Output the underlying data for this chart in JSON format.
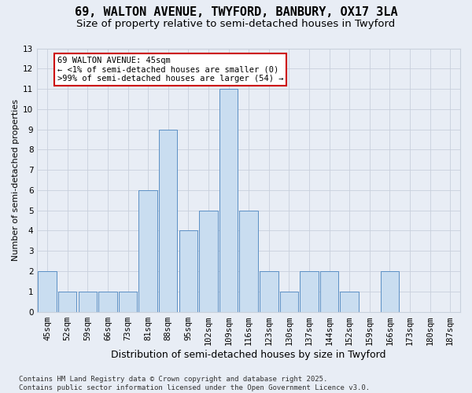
{
  "title1": "69, WALTON AVENUE, TWYFORD, BANBURY, OX17 3LA",
  "title2": "Size of property relative to semi-detached houses in Twyford",
  "xlabel": "Distribution of semi-detached houses by size in Twyford",
  "ylabel": "Number of semi-detached properties",
  "categories": [
    "45sqm",
    "52sqm",
    "59sqm",
    "66sqm",
    "73sqm",
    "81sqm",
    "88sqm",
    "95sqm",
    "102sqm",
    "109sqm",
    "116sqm",
    "123sqm",
    "130sqm",
    "137sqm",
    "144sqm",
    "152sqm",
    "159sqm",
    "166sqm",
    "173sqm",
    "180sqm",
    "187sqm"
  ],
  "values": [
    2,
    1,
    1,
    1,
    1,
    6,
    9,
    4,
    5,
    11,
    5,
    2,
    1,
    2,
    2,
    1,
    0,
    2,
    0,
    0,
    0
  ],
  "bar_color": "#c9ddf0",
  "bar_edge_color": "#5b8fc4",
  "annotation_text": "69 WALTON AVENUE: 45sqm\n← <1% of semi-detached houses are smaller (0)\n>99% of semi-detached houses are larger (54) →",
  "annotation_box_facecolor": "#ffffff",
  "annotation_box_edge": "#cc0000",
  "ylim": [
    0,
    13
  ],
  "yticks": [
    0,
    1,
    2,
    3,
    4,
    5,
    6,
    7,
    8,
    9,
    10,
    11,
    12,
    13
  ],
  "grid_color": "#c8d0dc",
  "background_color": "#e8edf5",
  "footer": "Contains HM Land Registry data © Crown copyright and database right 2025.\nContains public sector information licensed under the Open Government Licence v3.0.",
  "title1_fontsize": 11,
  "title2_fontsize": 9.5,
  "xlabel_fontsize": 9,
  "ylabel_fontsize": 8,
  "tick_fontsize": 7.5,
  "annot_fontsize": 7.5,
  "footer_fontsize": 6.5
}
